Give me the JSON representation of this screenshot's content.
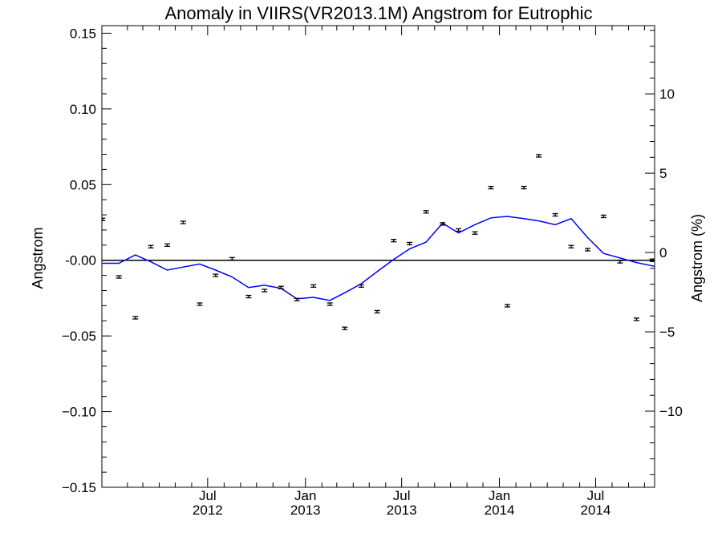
{
  "chart_data": {
    "type": "line",
    "title": "Anomaly in VIIRS(VR2013.1M) Angstrom for Eutrophic",
    "ylabel": "Angstrom",
    "ylabel_right": "Angstrom (%)",
    "ylim": [
      -0.15,
      0.155
    ],
    "y_right_lim": [
      -14.8,
      14.3
    ],
    "yticks": [
      -0.15,
      -0.1,
      -0.05,
      0.0,
      0.05,
      0.1,
      0.15
    ],
    "ytick_labels": [
      "−0.15",
      "−0.10",
      "−0.05",
      "-0.00",
      "0.05",
      "0.10",
      "0.15"
    ],
    "yticks_right": [
      -10,
      -5,
      0,
      5,
      10
    ],
    "ytick_labels_right": [
      "−10",
      "−5",
      "0",
      "5",
      "10"
    ],
    "xlim": [
      "2011-12-15",
      "2014-10-20"
    ],
    "xticks": [
      {
        "date": "2012-07-01",
        "label": "Jul",
        "year": "2012"
      },
      {
        "date": "2013-01-01",
        "label": "Jan",
        "year": "2013"
      },
      {
        "date": "2013-07-01",
        "label": "Jul",
        "year": "2013"
      },
      {
        "date": "2014-01-01",
        "label": "Jan",
        "year": "2014"
      },
      {
        "date": "2014-07-01",
        "label": "Jul",
        "year": "2014"
      }
    ],
    "zero_line": true,
    "grid": false,
    "series": [
      {
        "kind": "monthly_anomaly_points",
        "color": "#000000",
        "x": [
          "2011-12-16",
          "2012-01-16",
          "2012-02-16",
          "2012-03-16",
          "2012-04-16",
          "2012-05-16",
          "2012-06-16",
          "2012-07-16",
          "2012-08-16",
          "2012-09-16",
          "2012-10-16",
          "2012-11-16",
          "2012-12-16",
          "2013-01-16",
          "2013-02-16",
          "2013-03-16",
          "2013-04-16",
          "2013-05-16",
          "2013-06-16",
          "2013-07-16",
          "2013-08-16",
          "2013-09-16",
          "2013-10-16",
          "2013-11-16",
          "2013-12-16",
          "2014-01-16",
          "2014-02-16",
          "2014-03-16",
          "2014-04-16",
          "2014-05-16",
          "2014-06-16",
          "2014-07-16",
          "2014-08-16",
          "2014-09-16",
          "2014-10-16"
        ],
        "y": [
          0.027,
          -0.011,
          -0.038,
          0.009,
          0.01,
          0.025,
          -0.029,
          -0.01,
          0.001,
          -0.024,
          -0.02,
          -0.018,
          -0.026,
          -0.017,
          -0.029,
          -0.045,
          -0.017,
          -0.034,
          0.013,
          0.011,
          0.032,
          0.024,
          0.02,
          0.018,
          0.048,
          -0.03,
          0.048,
          0.069,
          0.03,
          0.009,
          0.007,
          0.029,
          -0.001,
          -0.039,
          0.0
        ],
        "error": 0.0008
      },
      {
        "kind": "smoothed_anomaly",
        "color": "#0000ff",
        "x": [
          "2011-12-15",
          "2012-01-16",
          "2012-02-16",
          "2012-03-16",
          "2012-04-16",
          "2012-05-16",
          "2012-06-16",
          "2012-07-16",
          "2012-08-16",
          "2012-09-16",
          "2012-10-16",
          "2012-11-16",
          "2012-12-16",
          "2013-01-16",
          "2013-02-16",
          "2013-03-16",
          "2013-04-16",
          "2013-05-16",
          "2013-06-16",
          "2013-07-16",
          "2013-08-16",
          "2013-09-16",
          "2013-10-16",
          "2013-11-16",
          "2013-12-16",
          "2014-01-16",
          "2014-02-16",
          "2014-03-16",
          "2014-04-16",
          "2014-05-16",
          "2014-06-16",
          "2014-07-16",
          "2014-08-16",
          "2014-09-16",
          "2014-10-20"
        ],
        "y": [
          -0.002,
          -0.002,
          0.0035,
          -0.001,
          -0.0065,
          -0.0045,
          -0.0025,
          -0.0065,
          -0.011,
          -0.018,
          -0.0165,
          -0.0185,
          -0.0255,
          -0.0245,
          -0.0265,
          -0.0215,
          -0.0155,
          -0.0075,
          0.0005,
          0.0075,
          0.012,
          0.0245,
          0.018,
          0.0235,
          0.028,
          0.029,
          0.0275,
          0.026,
          0.0235,
          0.0275,
          0.015,
          0.0045,
          0.0015,
          -0.0015,
          -0.004
        ]
      }
    ]
  }
}
